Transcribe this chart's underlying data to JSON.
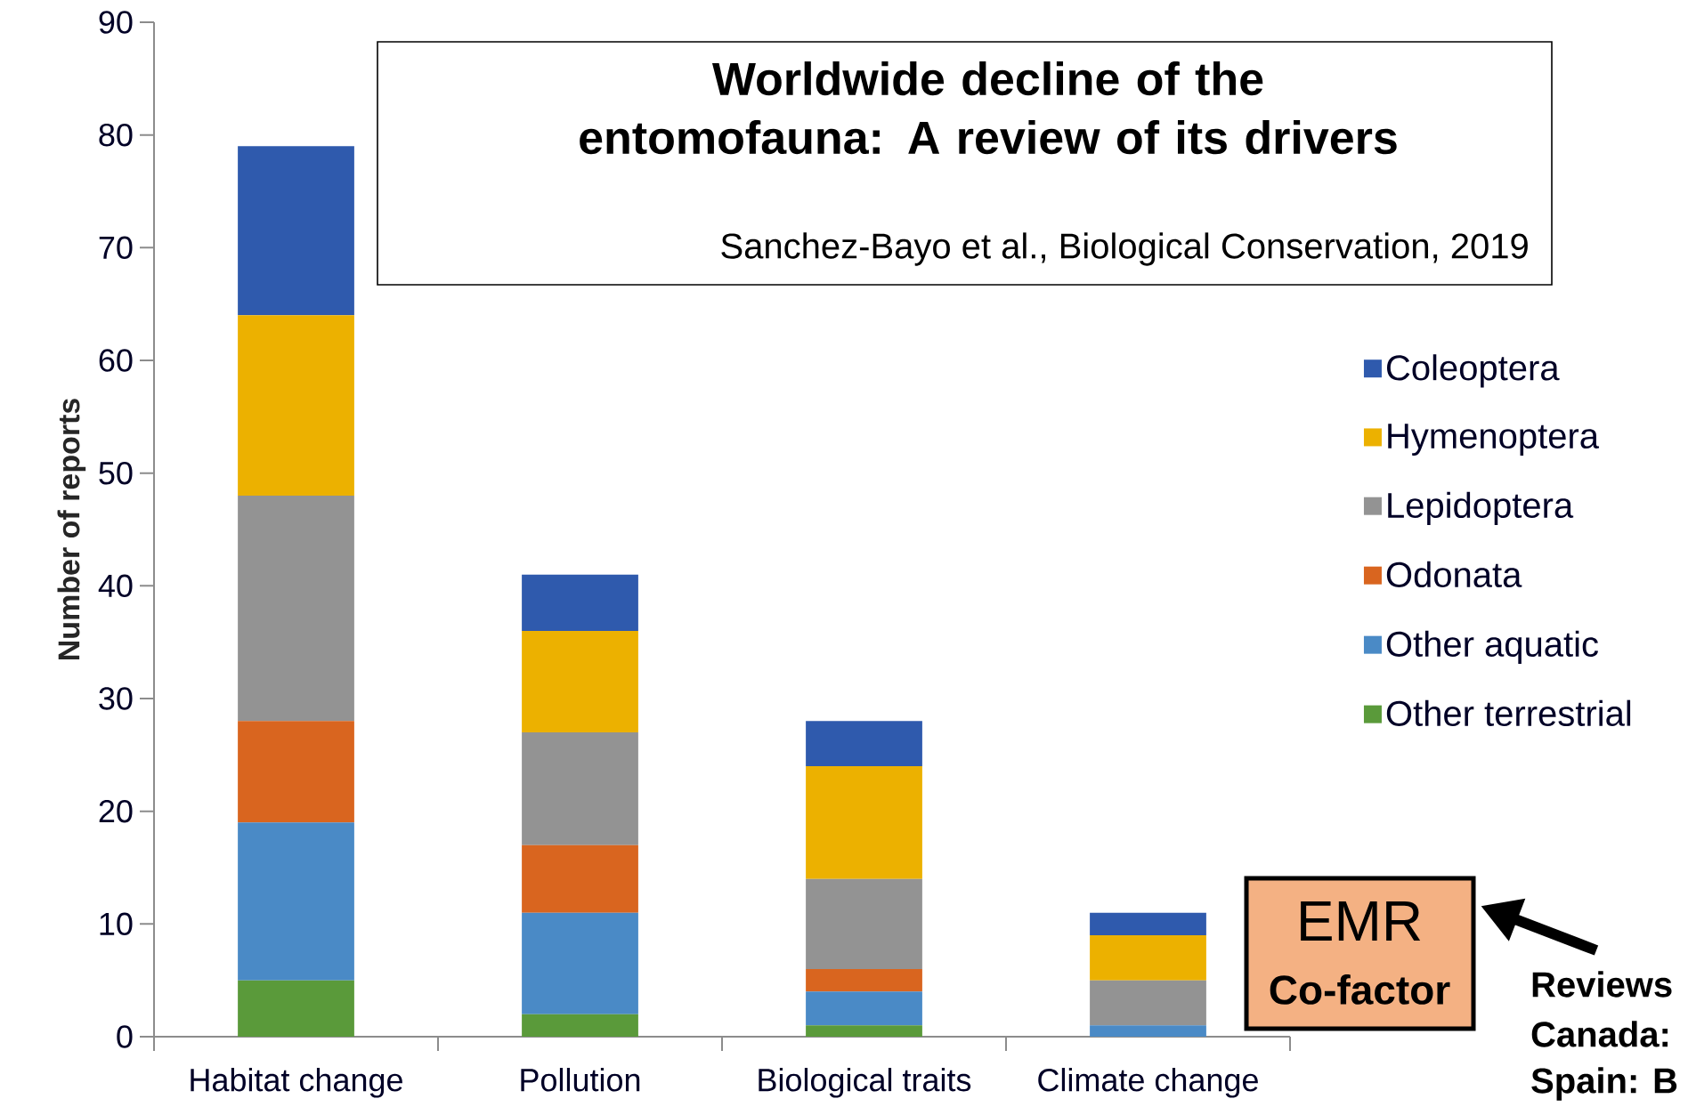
{
  "chart_data": {
    "type": "bar",
    "stacked": true,
    "title": "Worldwide decline of the entomofauna: A review of its drivers",
    "subtitle": "Sanchez-Bayo et al., Biological Conservation, 2019",
    "ylabel": "Number of reports",
    "categories": [
      "Habitat change",
      "Pollution",
      "Biological traits",
      "Climate change"
    ],
    "series": [
      {
        "name": "Other terrestrial",
        "color": "#5a9a3a",
        "values": [
          5,
          2,
          1,
          0
        ]
      },
      {
        "name": "Other aquatic",
        "color": "#4a8ac6",
        "values": [
          14,
          9,
          3,
          1
        ]
      },
      {
        "name": "Odonata",
        "color": "#d9651f",
        "values": [
          9,
          6,
          2,
          0
        ]
      },
      {
        "name": "Lepidoptera",
        "color": "#939393",
        "values": [
          20,
          10,
          8,
          4
        ]
      },
      {
        "name": "Hymenoptera",
        "color": "#ecb100",
        "values": [
          16,
          9,
          10,
          4
        ]
      },
      {
        "name": "Coleoptera",
        "color": "#2f5aad",
        "values": [
          15,
          5,
          4,
          2
        ]
      }
    ],
    "ylim": [
      0,
      90
    ],
    "yticks": [
      0,
      10,
      20,
      30,
      40,
      50,
      60,
      70,
      80,
      90
    ],
    "legend": "right",
    "annotations": [
      "EMR",
      "Co-factor",
      "Reviews",
      "Canada:",
      "Spain: B"
    ]
  }
}
